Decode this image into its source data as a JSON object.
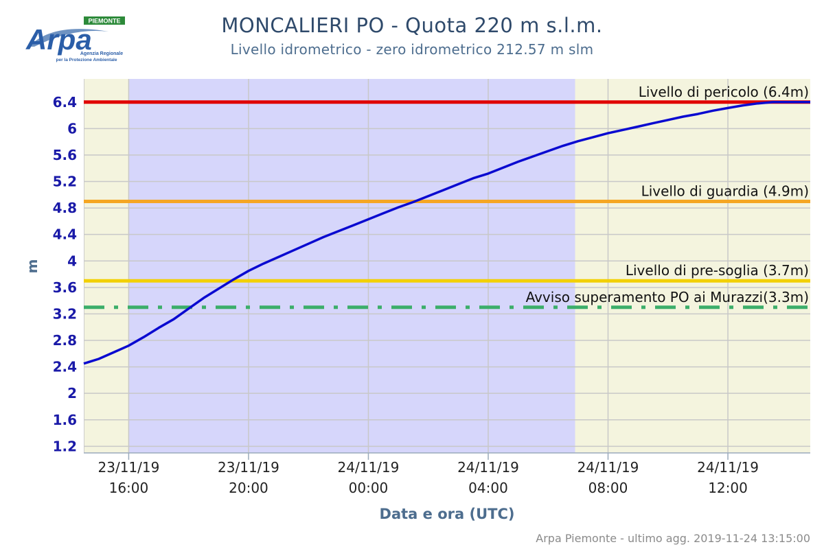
{
  "header": {
    "title": "MONCALIERI PO - Quota 220 m s.l.m.",
    "subtitle": "Livello idrometrico - zero idrometrico 212.57 m slm"
  },
  "logo": {
    "brand": "Arpa",
    "region": "PIEMONTE",
    "tagline_1": "Agenzia Regionale",
    "tagline_2": "per la Protezione Ambientale"
  },
  "credits": "Arpa Piemonte - ultimo agg. 2019-11-24 13:15:00",
  "chart_data": {
    "type": "line",
    "xlabel": "Data e ora (UTC)",
    "ylabel": "m",
    "ylim": [
      1.1,
      6.75
    ],
    "xlim_hours": [
      -1.5,
      22.75
    ],
    "y_ticks": [
      1.2,
      1.6,
      2,
      2.4,
      2.8,
      3.2,
      3.6,
      4,
      4.4,
      4.8,
      5.2,
      5.6,
      6,
      6.4
    ],
    "x_ticks": [
      {
        "hour": 0,
        "date": "23/11/19",
        "time": "16:00"
      },
      {
        "hour": 4,
        "date": "23/11/19",
        "time": "20:00"
      },
      {
        "hour": 8,
        "date": "24/11/19",
        "time": "00:00"
      },
      {
        "hour": 12,
        "date": "24/11/19",
        "time": "04:00"
      },
      {
        "hour": 16,
        "date": "24/11/19",
        "time": "08:00"
      },
      {
        "hour": 20,
        "date": "24/11/19",
        "time": "12:00"
      }
    ],
    "bands": [
      {
        "from": -1.5,
        "to": 0,
        "color": "#f4f4de"
      },
      {
        "from": 0,
        "to": 14.9,
        "color": "#d6d6fb"
      },
      {
        "from": 14.9,
        "to": 22.75,
        "color": "#f4f4de"
      }
    ],
    "thresholds": [
      {
        "label": "Livello di pericolo (6.4m)",
        "value": 6.4,
        "color": "#e00000",
        "style": "solid"
      },
      {
        "label": "Livello di guardia (4.9m)",
        "value": 4.9,
        "color": "#f5a623",
        "style": "solid"
      },
      {
        "label": "Livello di pre-soglia (3.7m)",
        "value": 3.7,
        "color": "#f2d000",
        "style": "solid"
      },
      {
        "label": "Avviso superamento PO ai Murazzi(3.3m)",
        "value": 3.3,
        "color": "#3cae6a",
        "style": "dashdot"
      }
    ],
    "series": [
      {
        "color": "#0a0ad0",
        "points": [
          [
            -1.5,
            2.45
          ],
          [
            -1.0,
            2.52
          ],
          [
            -0.5,
            2.62
          ],
          [
            0.0,
            2.72
          ],
          [
            0.5,
            2.85
          ],
          [
            1.0,
            2.99
          ],
          [
            1.5,
            3.12
          ],
          [
            2.0,
            3.28
          ],
          [
            2.5,
            3.44
          ],
          [
            3.0,
            3.58
          ],
          [
            3.5,
            3.72
          ],
          [
            4.0,
            3.85
          ],
          [
            4.5,
            3.96
          ],
          [
            5.0,
            4.06
          ],
          [
            5.5,
            4.16
          ],
          [
            6.0,
            4.26
          ],
          [
            6.5,
            4.36
          ],
          [
            7.0,
            4.45
          ],
          [
            7.5,
            4.54
          ],
          [
            8.0,
            4.63
          ],
          [
            8.5,
            4.72
          ],
          [
            9.0,
            4.81
          ],
          [
            9.5,
            4.89
          ],
          [
            10.0,
            4.98
          ],
          [
            10.5,
            5.07
          ],
          [
            11.0,
            5.16
          ],
          [
            11.5,
            5.25
          ],
          [
            12.0,
            5.32
          ],
          [
            12.5,
            5.41
          ],
          [
            13.0,
            5.5
          ],
          [
            13.5,
            5.58
          ],
          [
            14.0,
            5.66
          ],
          [
            14.5,
            5.74
          ],
          [
            15.0,
            5.81
          ],
          [
            15.5,
            5.87
          ],
          [
            16.0,
            5.93
          ],
          [
            16.5,
            5.98
          ],
          [
            17.0,
            6.03
          ],
          [
            17.5,
            6.08
          ],
          [
            18.0,
            6.13
          ],
          [
            18.5,
            6.18
          ],
          [
            19.0,
            6.22
          ],
          [
            19.5,
            6.27
          ],
          [
            20.0,
            6.31
          ],
          [
            20.5,
            6.35
          ],
          [
            21.0,
            6.38
          ],
          [
            21.5,
            6.4
          ],
          [
            22.0,
            6.4
          ],
          [
            22.75,
            6.4
          ]
        ]
      }
    ]
  }
}
